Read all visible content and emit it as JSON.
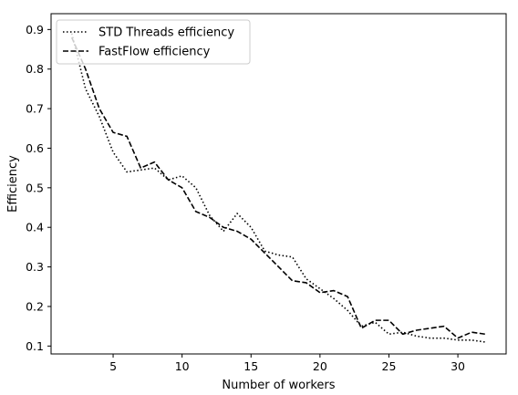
{
  "chart_data": {
    "type": "line",
    "title": "",
    "xlabel": "Number of workers",
    "ylabel": "Efficiency",
    "xlim": [
      0.5,
      33.5
    ],
    "ylim": [
      0.08,
      0.94
    ],
    "xticks": [
      5,
      10,
      15,
      20,
      25,
      30
    ],
    "yticks": [
      0.1,
      0.2,
      0.3,
      0.4,
      0.5,
      0.6,
      0.7,
      0.8,
      0.9
    ],
    "grid": false,
    "legend_position": "top-left",
    "series": [
      {
        "name": "STD Threads efficiency",
        "style": "dotted",
        "color": "#000000",
        "x": [
          2,
          3,
          4,
          5,
          6,
          7,
          8,
          9,
          10,
          11,
          12,
          13,
          14,
          15,
          16,
          17,
          18,
          19,
          20,
          21,
          22,
          23,
          24,
          25,
          26,
          27,
          28,
          29,
          30,
          31,
          32
        ],
        "y": [
          0.89,
          0.75,
          0.68,
          0.59,
          0.54,
          0.545,
          0.55,
          0.52,
          0.53,
          0.5,
          0.43,
          0.39,
          0.435,
          0.4,
          0.34,
          0.33,
          0.325,
          0.27,
          0.245,
          0.22,
          0.19,
          0.15,
          0.16,
          0.13,
          0.135,
          0.125,
          0.12,
          0.12,
          0.115,
          0.115,
          0.11
        ]
      },
      {
        "name": "FastFlow efficiency",
        "style": "dashed",
        "color": "#000000",
        "x": [
          2,
          3,
          4,
          5,
          6,
          7,
          8,
          9,
          10,
          11,
          12,
          13,
          14,
          15,
          16,
          17,
          18,
          19,
          20,
          21,
          22,
          23,
          24,
          25,
          26,
          27,
          28,
          29,
          30,
          31,
          32
        ],
        "y": [
          0.88,
          0.8,
          0.7,
          0.64,
          0.63,
          0.55,
          0.565,
          0.52,
          0.5,
          0.44,
          0.425,
          0.4,
          0.39,
          0.37,
          0.335,
          0.3,
          0.265,
          0.26,
          0.235,
          0.24,
          0.225,
          0.145,
          0.165,
          0.165,
          0.13,
          0.14,
          0.145,
          0.15,
          0.12,
          0.135,
          0.13
        ]
      }
    ]
  }
}
